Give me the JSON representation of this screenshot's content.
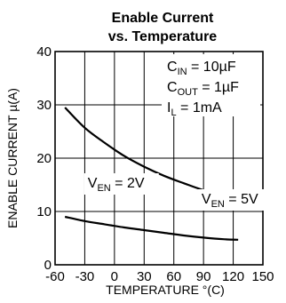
{
  "chart_data": {
    "type": "line",
    "title": [
      "Enable Current",
      "vs. Temperature"
    ],
    "xlabel": {
      "text": "TEMPERATURE",
      "unit": "(C)",
      "unit_glyph": "°"
    },
    "ylabel": {
      "text": "ENABLE CURRENT",
      "unit": "(A)",
      "unit_glyph": "µ"
    },
    "xlim": [
      -60,
      150
    ],
    "ylim": [
      0,
      40
    ],
    "x_ticks": [
      -60,
      -30,
      0,
      30,
      60,
      90,
      120,
      150
    ],
    "y_ticks": [
      0,
      10,
      20,
      30,
      40
    ],
    "grid": true,
    "conditions": [
      {
        "main": "C",
        "sub": "IN",
        "value": " = 10µF"
      },
      {
        "main": "C",
        "sub": "OUT",
        "value": " = 1µF"
      },
      {
        "main": "I",
        "sub": "L",
        "value": " = 1mA"
      }
    ],
    "series": [
      {
        "name": "V_EN = 5V",
        "label_main": "V",
        "label_sub": "EN",
        "label_value": " = 5V",
        "label_at": [
          88,
          11.5
        ],
        "color": "#000000",
        "x": [
          -50,
          -30,
          -10,
          10,
          30,
          50,
          70,
          90,
          110,
          125
        ],
        "y": [
          29.5,
          25.7,
          22.9,
          20.4,
          18.4,
          16.7,
          15.3,
          14.0,
          13.1,
          12.5
        ]
      },
      {
        "name": "V_EN = 2V",
        "label_main": "V",
        "label_sub": "EN",
        "label_value": " = 2V",
        "label_at": [
          -27,
          14.5
        ],
        "color": "#000000",
        "x": [
          -50,
          -30,
          -10,
          10,
          30,
          50,
          70,
          90,
          110,
          125
        ],
        "y": [
          9.0,
          8.2,
          7.6,
          7.0,
          6.5,
          6.0,
          5.5,
          5.1,
          4.8,
          4.7
        ]
      }
    ]
  }
}
